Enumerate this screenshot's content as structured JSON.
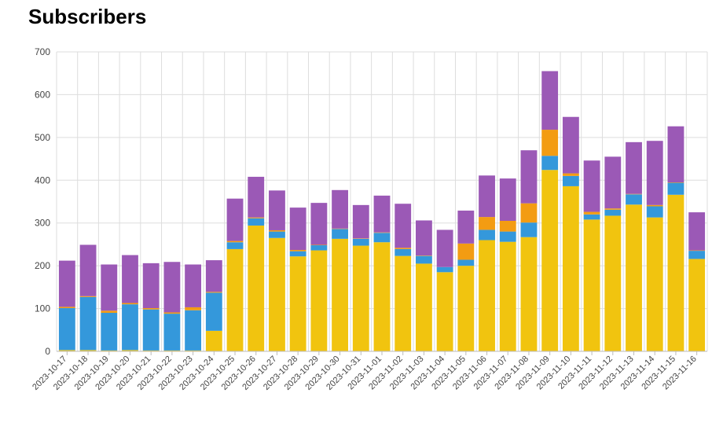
{
  "page": {
    "title": "Subscribers"
  },
  "chart_data": {
    "type": "bar",
    "stacked": true,
    "title": "Subscribers",
    "xlabel": "",
    "ylabel": "",
    "ylim": [
      0,
      700
    ],
    "yticks": [
      0,
      100,
      200,
      300,
      400,
      500,
      600,
      700
    ],
    "grid": true,
    "legend": "none",
    "categories": [
      "2023-10-17",
      "2023-10-18",
      "2023-10-19",
      "2023-10-20",
      "2023-10-21",
      "2023-10-22",
      "2023-10-23",
      "2023-10-24",
      "2023-10-25",
      "2023-10-26",
      "2023-10-27",
      "2023-10-28",
      "2023-10-29",
      "2023-10-30",
      "2023-10-31",
      "2023-11-01",
      "2023-11-02",
      "2023-11-03",
      "2023-11-04",
      "2023-11-05",
      "2023-11-06",
      "2023-11-07",
      "2023-11-08",
      "2023-11-09",
      "2023-11-10",
      "2023-11-11",
      "2023-11-12",
      "2023-11-13",
      "2023-11-14",
      "2023-11-15",
      "2023-11-16"
    ],
    "series": [
      {
        "name": "yellow",
        "color": "#f1c40f",
        "values": [
          3,
          3,
          2,
          3,
          2,
          2,
          2,
          48,
          239,
          294,
          265,
          222,
          236,
          263,
          247,
          255,
          223,
          205,
          185,
          200,
          260,
          256,
          267,
          424,
          386,
          308,
          317,
          343,
          313,
          366,
          216
        ]
      },
      {
        "name": "blue",
        "color": "#3498db",
        "values": [
          98,
          124,
          88,
          107,
          96,
          86,
          94,
          89,
          16,
          17,
          15,
          12,
          12,
          23,
          16,
          22,
          16,
          18,
          12,
          14,
          24,
          24,
          34,
          33,
          24,
          12,
          14,
          24,
          26,
          28,
          19
        ]
      },
      {
        "name": "orange",
        "color": "#f39c12",
        "values": [
          3,
          2,
          5,
          3,
          3,
          3,
          7,
          2,
          3,
          2,
          3,
          3,
          1,
          1,
          1,
          1,
          3,
          1,
          0,
          38,
          30,
          25,
          45,
          61,
          6,
          6,
          3,
          1,
          3,
          1,
          1
        ]
      },
      {
        "name": "purple",
        "color": "#9b59b6",
        "values": [
          108,
          120,
          108,
          112,
          105,
          118,
          100,
          74,
          99,
          95,
          93,
          99,
          98,
          90,
          78,
          86,
          103,
          82,
          87,
          77,
          97,
          99,
          124,
          137,
          132,
          120,
          121,
          121,
          150,
          131,
          89
        ]
      }
    ]
  }
}
